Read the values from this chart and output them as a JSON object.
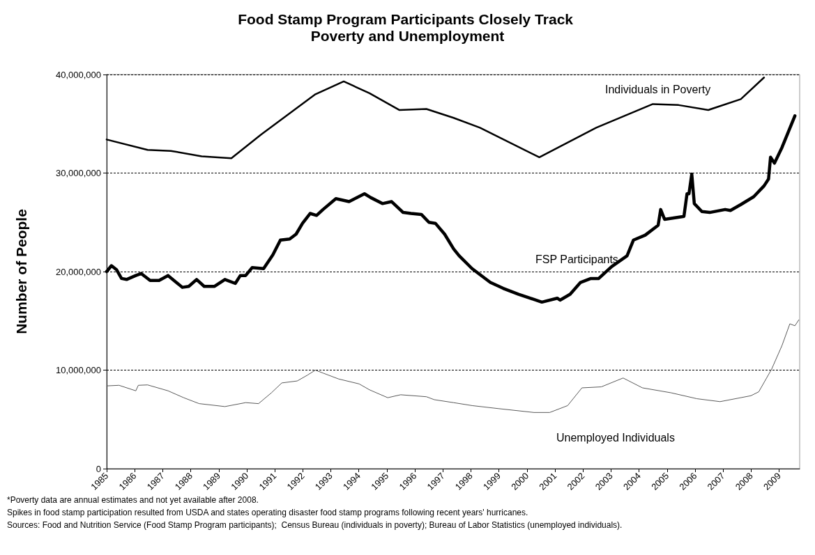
{
  "chart_data": {
    "type": "line",
    "title": "Food Stamp Program Participants Closely Track Poverty and Unemployment",
    "ylabel": "Number of People",
    "xlim": [
      1985,
      2009.73
    ],
    "xticks": [
      1985,
      1986,
      1987,
      1988,
      1989,
      1990,
      1991,
      1992,
      1993,
      1994,
      1995,
      1996,
      1997,
      1998,
      1999,
      2000,
      2001,
      2002,
      2003,
      2004,
      2005,
      2006,
      2007,
      2008,
      2009
    ],
    "ylim": [
      0,
      40000000
    ],
    "yticks": [
      0,
      {
        "value": 10000000,
        "label": "10,000,000"
      },
      {
        "value": 20000000,
        "label": "20,000,000"
      },
      {
        "value": 30000000,
        "label": "30,000,000"
      },
      {
        "value": 40000000,
        "label": "40,000,000"
      }
    ],
    "grid": "y",
    "marker": "none",
    "series": [
      {
        "name": "Individuals in Poverty",
        "color": "#000000",
        "x": [
          1985.0,
          1986.46,
          1987.29,
          1988.39,
          1989.45,
          1990.51,
          1992.45,
          1993.46,
          1994.38,
          1995.44,
          1996.41,
          1997.38,
          1998.32,
          2000.44,
          2002.47,
          2004.49,
          2005.41,
          2006.47,
          2007.63,
          2008.46
        ],
        "values": [
          33400000,
          32350000,
          32250000,
          31700000,
          31500000,
          33900000,
          38000000,
          39300000,
          38100000,
          36400000,
          36500000,
          35600000,
          34600000,
          31600000,
          34600000,
          37000000,
          36900000,
          36400000,
          37500000,
          39700000
        ]
      },
      {
        "name": "FSP Participants",
        "color": "#000000",
        "x": [
          1985.0,
          1985.17,
          1985.35,
          1985.53,
          1985.71,
          1986.04,
          1986.23,
          1986.55,
          1986.87,
          1987.19,
          1987.7,
          1987.93,
          1988.21,
          1988.48,
          1988.85,
          1989.22,
          1989.59,
          1989.77,
          1989.96,
          1990.19,
          1990.6,
          1990.93,
          1991.2,
          1991.53,
          1991.76,
          1991.99,
          1992.26,
          1992.49,
          1992.72,
          1993.18,
          1993.65,
          1994.2,
          1994.43,
          1994.84,
          1995.17,
          1995.58,
          1995.86,
          1996.23,
          1996.5,
          1996.73,
          1997.06,
          1997.38,
          1997.58,
          1998.04,
          1998.69,
          1999.15,
          1999.7,
          2000.53,
          2001.08,
          2001.18,
          2001.54,
          2001.91,
          2002.28,
          2002.56,
          2003.02,
          2003.57,
          2003.8,
          2004.22,
          2004.68,
          2004.77,
          2004.91,
          2005.6,
          2005.71,
          2005.78,
          2005.88,
          2005.97,
          2006.24,
          2006.52,
          2007.07,
          2007.26,
          2007.63,
          2008.09,
          2008.46,
          2008.62,
          2008.69,
          2008.83,
          2009.1,
          2009.56
        ],
        "values": [
          20000000,
          20600000,
          20200000,
          19300000,
          19200000,
          19600000,
          19800000,
          19100000,
          19100000,
          19600000,
          18400000,
          18500000,
          19200000,
          18500000,
          18500000,
          19200000,
          18800000,
          19600000,
          19600000,
          20400000,
          20300000,
          21700000,
          23200000,
          23300000,
          23800000,
          24900000,
          25900000,
          25700000,
          26300000,
          27400000,
          27100000,
          27900000,
          27500000,
          26900000,
          27100000,
          26000000,
          25900000,
          25800000,
          25000000,
          24900000,
          23800000,
          22300000,
          21600000,
          20300000,
          18900000,
          18300000,
          17700000,
          16900000,
          17300000,
          17100000,
          17700000,
          18900000,
          19300000,
          19300000,
          20500000,
          21600000,
          23200000,
          23700000,
          24700000,
          26300000,
          25300000,
          25600000,
          27900000,
          27900000,
          29900000,
          26900000,
          26100000,
          26000000,
          26300000,
          26200000,
          26800000,
          27600000,
          28700000,
          29400000,
          31600000,
          31000000,
          32600000,
          35800000
        ]
      },
      {
        "name": "Unemployed Individuals",
        "color": "#595959",
        "x": [
          1985.0,
          1985.44,
          1986.04,
          1986.13,
          1986.46,
          1987.19,
          1987.75,
          1988.3,
          1989.22,
          1989.96,
          1990.42,
          1990.88,
          1991.25,
          1991.8,
          1992.17,
          1992.45,
          1992.72,
          1993.28,
          1994.01,
          1994.38,
          1995.03,
          1995.49,
          1996.41,
          1996.69,
          1997.38,
          1998.04,
          1998.96,
          2000.25,
          2000.81,
          2001.45,
          2001.96,
          2002.65,
          2003.43,
          2004.12,
          2005.14,
          2006.06,
          2006.89,
          2007.99,
          2008.27,
          2008.73,
          2009.1,
          2009.38,
          2009.56,
          2009.7
        ],
        "values": [
          8400000,
          8460000,
          7900000,
          8460000,
          8500000,
          7900000,
          7200000,
          6600000,
          6300000,
          6700000,
          6600000,
          7700000,
          8700000,
          8900000,
          9500000,
          10000000,
          9700000,
          9100000,
          8600000,
          8000000,
          7200000,
          7500000,
          7300000,
          7000000,
          6700000,
          6400000,
          6100000,
          5700000,
          5700000,
          6400000,
          8200000,
          8300000,
          9200000,
          8200000,
          7700000,
          7100000,
          6800000,
          7400000,
          7800000,
          10100000,
          12500000,
          14700000,
          14500000,
          15100000
        ]
      }
    ],
    "annotations": [
      "*Poverty data are annual estimates and not yet available after 2008.",
      "Spikes in food stamp participation resulted from USDA and states operating disaster food stamp programs following recent years' hurricanes.",
      "Sources: Food and Nutrition Service (Food Stamp Program participants);  Census Bureau (individuals in poverty); Bureau of Labor Statistics (unemployed individuals)."
    ]
  }
}
